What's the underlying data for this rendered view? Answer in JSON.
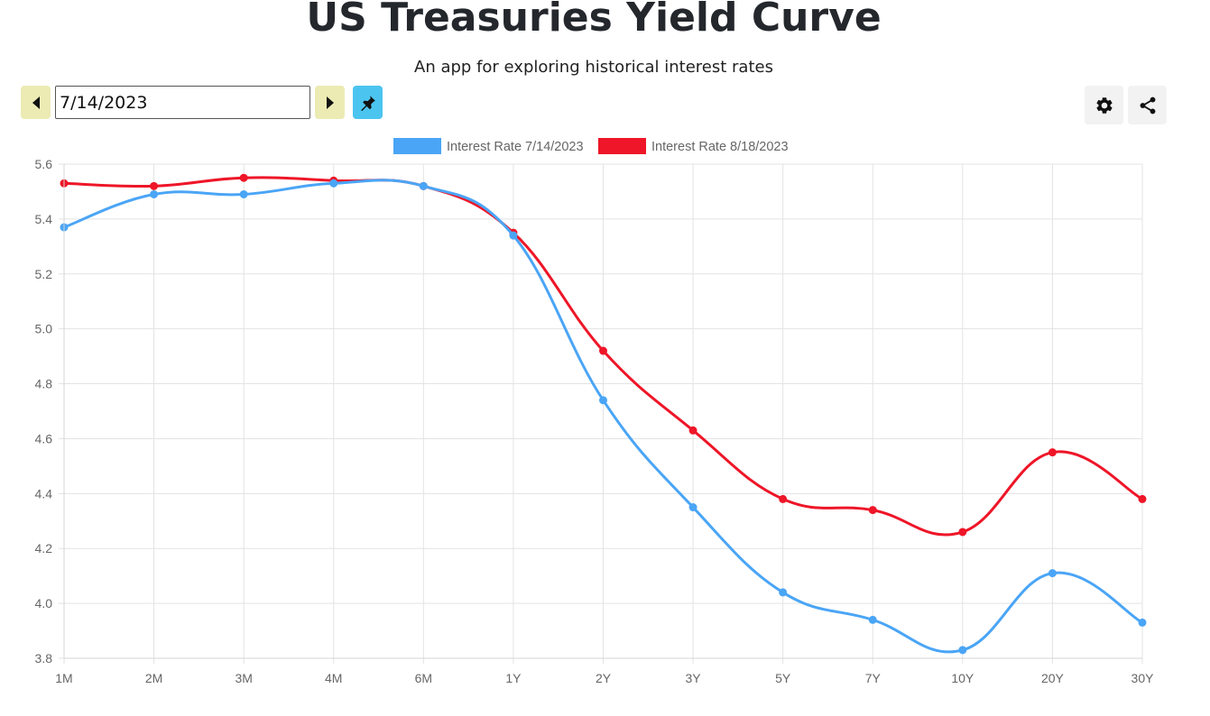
{
  "header": {
    "title": "US Treasuries Yield Curve",
    "subtitle": "An app for exploring historical interest rates"
  },
  "toolbar": {
    "date_value": "7/14/2023",
    "prev_icon": "caret-left-icon",
    "next_icon": "caret-right-icon",
    "pin_icon": "pin-icon",
    "settings_icon": "gear-icon",
    "share_icon": "share-icon",
    "colors": {
      "nav_button_bg": "#ecebb4",
      "pin_button_bg": "#4cc4f0",
      "icon_button_bg": "#f2f2f2"
    }
  },
  "chart_data": {
    "type": "line",
    "categories": [
      "1M",
      "2M",
      "3M",
      "4M",
      "6M",
      "1Y",
      "2Y",
      "3Y",
      "5Y",
      "7Y",
      "10Y",
      "20Y",
      "30Y"
    ],
    "series": [
      {
        "name": "Interest Rate 7/14/2023",
        "color": "#4aa5f6",
        "values": [
          5.37,
          5.49,
          5.49,
          5.53,
          5.52,
          5.34,
          4.74,
          4.35,
          4.04,
          3.94,
          3.83,
          4.11,
          3.93
        ]
      },
      {
        "name": "Interest Rate 8/18/2023",
        "color": "#ee1628",
        "values": [
          5.53,
          5.52,
          5.55,
          5.54,
          5.52,
          5.35,
          4.92,
          4.63,
          4.38,
          4.34,
          4.26,
          4.55,
          4.38
        ]
      }
    ],
    "y_ticks": [
      "3.8",
      "4.0",
      "4.2",
      "4.4",
      "4.6",
      "4.8",
      "5.0",
      "5.2",
      "5.4",
      "5.6"
    ],
    "ylim": [
      3.8,
      5.6
    ],
    "grid": true,
    "legend_position": "top",
    "title": "",
    "xlabel": "",
    "ylabel": ""
  }
}
